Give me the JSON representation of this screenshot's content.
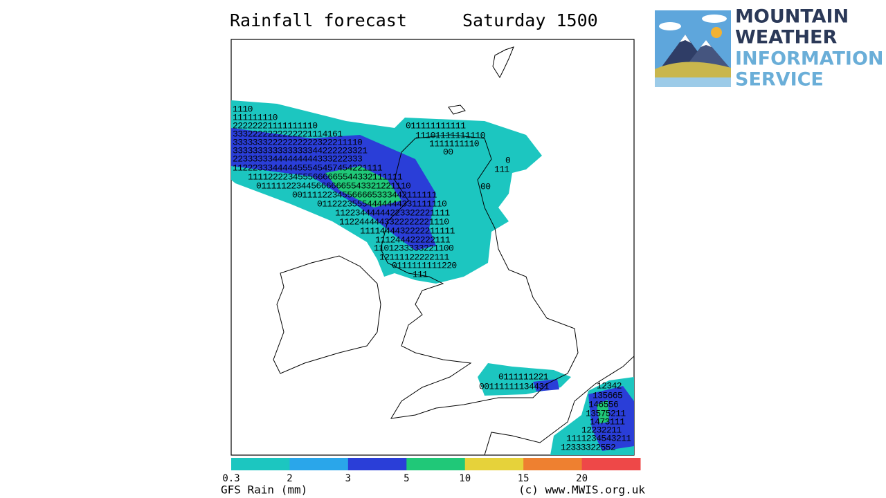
{
  "header": {
    "title": "Rainfall forecast",
    "time": "Saturday 1500"
  },
  "logo": {
    "lines": [
      "MOUNTAIN",
      "WEATHER",
      "INFORMATION",
      "SERVICE"
    ]
  },
  "rain_values": [
    "1110",
    "111111110",
    "22222221111111110",
    "3332222222222221114161",
    "33333332222222222322211110",
    "333333333333333344222223321",
    "22333333444444444333222333",
    "112223334444455545457454221111",
    "1111222234555666665544332111111",
    "0111112234456666665543321221110",
    "00111122345566665333442111111",
    "01122235554444444331111110",
    "11223444444223322221111",
    "1122444443322222221110",
    "1111444432222211111",
    "111244422222111",
    "1101233333221100",
    "12111122222111",
    "0111111111220",
    "111",
    "011111111111",
    "11101111111110",
    "1111111110",
    "00",
    "0",
    "111",
    "00",
    "0111111221",
    "00111111134431",
    "12342",
    "135665",
    "146556",
    "13575211",
    "1473111",
    "12232211",
    "1111234543211",
    "12333322552"
  ],
  "legend": {
    "colors": [
      "#1cc6c0",
      "#2aa6ea",
      "#2a3ed8",
      "#20c878",
      "#e6d23a",
      "#ee8030",
      "#ee4848"
    ],
    "ticks": [
      "0.3",
      "2",
      "3",
      "5",
      "10",
      "15",
      "20"
    ],
    "label": "GFS Rain (mm)",
    "credit": "(c) www.MWIS.org.uk"
  }
}
